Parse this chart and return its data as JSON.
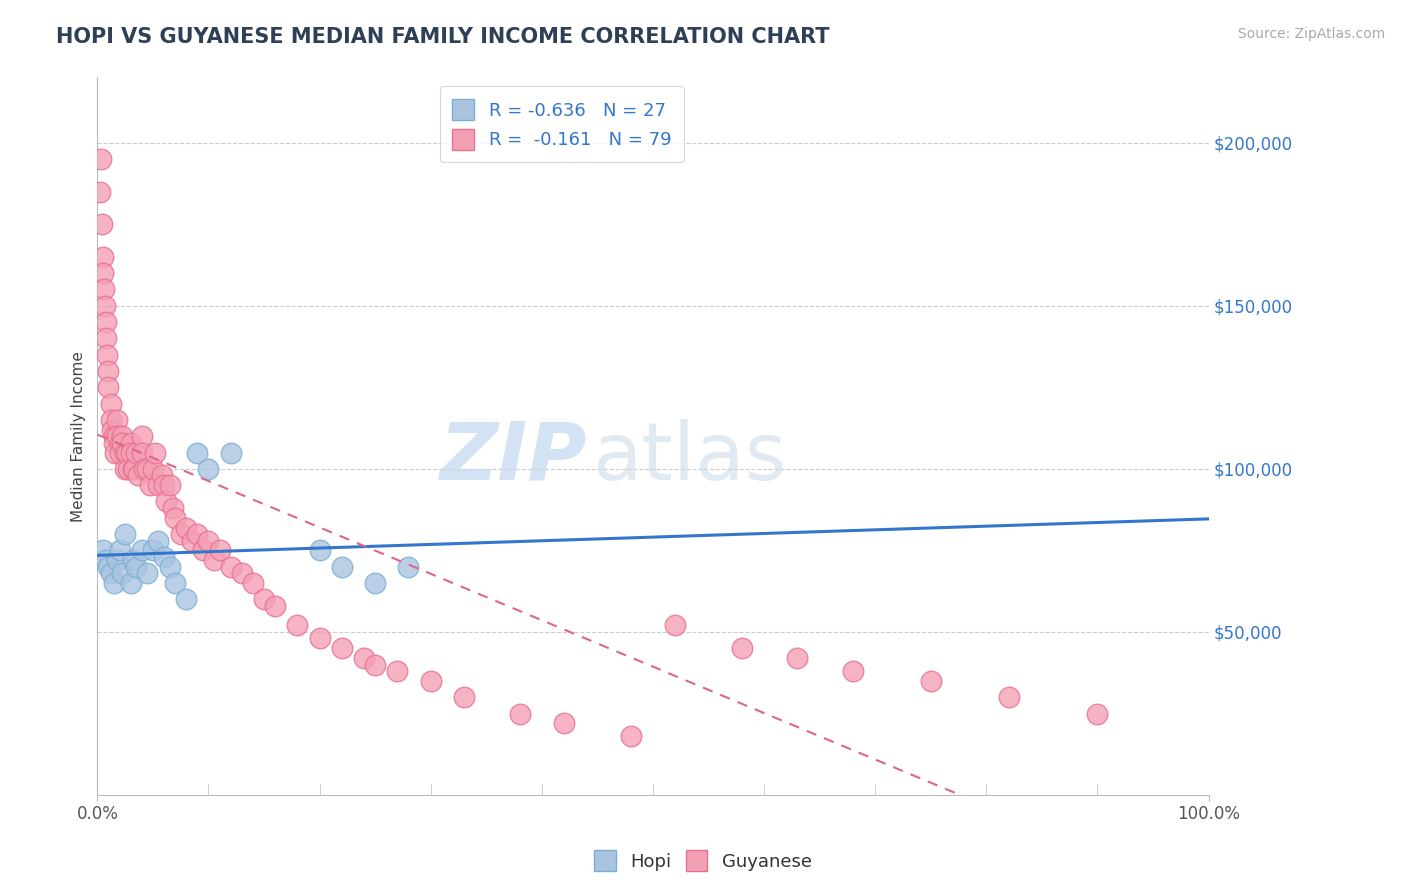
{
  "title": "HOPI VS GUYANESE MEDIAN FAMILY INCOME CORRELATION CHART",
  "source_text": "Source: ZipAtlas.com",
  "ylabel": "Median Family Income",
  "x_min": 0.0,
  "x_max": 1.0,
  "y_min": 0,
  "y_max": 220000,
  "x_tick_labels": [
    "0.0%",
    "100.0%"
  ],
  "y_ticks": [
    50000,
    100000,
    150000,
    200000
  ],
  "y_tick_labels": [
    "$50,000",
    "$100,000",
    "$150,000",
    "$200,000"
  ],
  "title_color": "#2e4057",
  "title_fontsize": 15,
  "background_color": "#ffffff",
  "grid_color": "#cccccc",
  "hopi_color": "#aac4e0",
  "hopi_edge_color": "#7aafd4",
  "guyanese_color": "#f4a0b4",
  "guyanese_edge_color": "#e87090",
  "hopi_line_color": "#3377cc",
  "guyanese_line_color": "#dd6688",
  "legend_label_hopi": "R = -0.636   N = 27",
  "legend_label_guyanese": "R =  -0.161   N = 79",
  "hopi_x": [
    0.005,
    0.008,
    0.01,
    0.012,
    0.015,
    0.018,
    0.02,
    0.022,
    0.025,
    0.03,
    0.032,
    0.035,
    0.04,
    0.045,
    0.05,
    0.055,
    0.06,
    0.065,
    0.07,
    0.08,
    0.09,
    0.1,
    0.12,
    0.2,
    0.22,
    0.25,
    0.28
  ],
  "hopi_y": [
    75000,
    72000,
    70000,
    68000,
    65000,
    72000,
    75000,
    68000,
    80000,
    65000,
    72000,
    70000,
    75000,
    68000,
    75000,
    78000,
    73000,
    70000,
    65000,
    60000,
    105000,
    100000,
    105000,
    75000,
    70000,
    65000,
    70000
  ],
  "guyanese_x": [
    0.002,
    0.003,
    0.004,
    0.005,
    0.005,
    0.006,
    0.007,
    0.008,
    0.008,
    0.009,
    0.01,
    0.01,
    0.012,
    0.012,
    0.013,
    0.015,
    0.015,
    0.016,
    0.018,
    0.018,
    0.02,
    0.02,
    0.022,
    0.022,
    0.025,
    0.025,
    0.027,
    0.028,
    0.03,
    0.03,
    0.032,
    0.033,
    0.035,
    0.037,
    0.04,
    0.04,
    0.042,
    0.045,
    0.047,
    0.05,
    0.052,
    0.055,
    0.058,
    0.06,
    0.062,
    0.065,
    0.068,
    0.07,
    0.075,
    0.08,
    0.085,
    0.09,
    0.095,
    0.1,
    0.105,
    0.11,
    0.12,
    0.13,
    0.14,
    0.15,
    0.16,
    0.18,
    0.2,
    0.22,
    0.24,
    0.25,
    0.27,
    0.3,
    0.33,
    0.38,
    0.42,
    0.48,
    0.52,
    0.58,
    0.63,
    0.68,
    0.75,
    0.82,
    0.9
  ],
  "guyanese_y": [
    185000,
    195000,
    175000,
    165000,
    160000,
    155000,
    150000,
    145000,
    140000,
    135000,
    130000,
    125000,
    120000,
    115000,
    112000,
    110000,
    108000,
    105000,
    115000,
    110000,
    108000,
    105000,
    110000,
    108000,
    105000,
    100000,
    105000,
    100000,
    108000,
    105000,
    100000,
    100000,
    105000,
    98000,
    110000,
    105000,
    100000,
    100000,
    95000,
    100000,
    105000,
    95000,
    98000,
    95000,
    90000,
    95000,
    88000,
    85000,
    80000,
    82000,
    78000,
    80000,
    75000,
    78000,
    72000,
    75000,
    70000,
    68000,
    65000,
    60000,
    58000,
    52000,
    48000,
    45000,
    42000,
    40000,
    38000,
    35000,
    30000,
    25000,
    22000,
    18000,
    52000,
    45000,
    42000,
    38000,
    35000,
    30000,
    25000
  ]
}
